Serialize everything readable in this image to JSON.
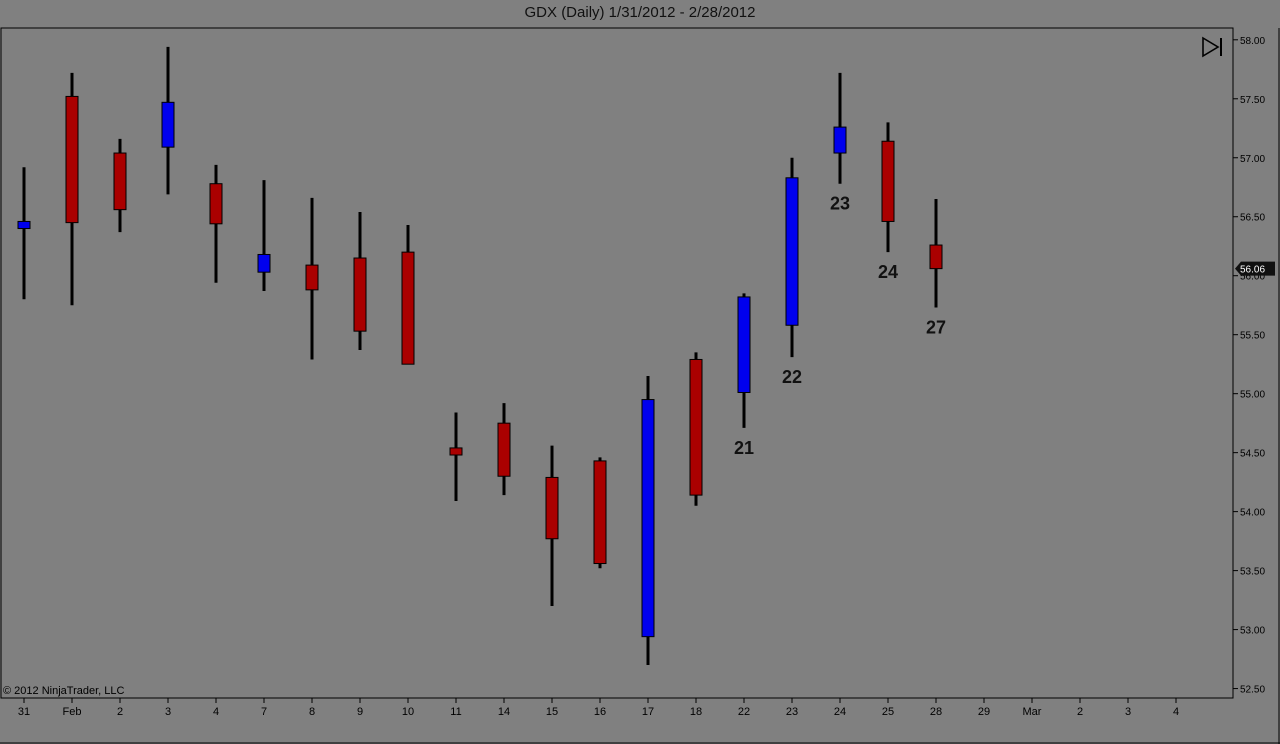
{
  "window": {
    "title": "GDX (Daily)  1/31/2012 - 2/28/2012",
    "copyright": "© 2012 NinjaTrader, LLC",
    "icons": [
      "skip-to-end-icon"
    ]
  },
  "colors": {
    "background": "#808080",
    "up_candle": "#0000ee",
    "down_candle": "#aa0000",
    "wick": "#000000",
    "price_marker": "#111111"
  },
  "chart_data": {
    "type": "candlestick",
    "title": "GDX (Daily)  1/31/2012 - 2/28/2012",
    "ylim": [
      52.42,
      58.1
    ],
    "y_ticks": [
      "58.00",
      "57.50",
      "57.00",
      "56.50",
      "56.00",
      "55.50",
      "55.00",
      "54.50",
      "54.00",
      "53.50",
      "53.00",
      "52.50"
    ],
    "x_ticks": [
      "31",
      "Feb",
      "2",
      "3",
      "4",
      "7",
      "8",
      "9",
      "10",
      "11",
      "14",
      "15",
      "16",
      "17",
      "18",
      "22",
      "23",
      "24",
      "25",
      "28",
      "29",
      "Mar",
      "2",
      "3",
      "4"
    ],
    "last_price": "56.06",
    "grid": false,
    "candles": [
      {
        "date": "31",
        "open": 56.4,
        "high": 56.92,
        "low": 55.8,
        "close": 56.46
      },
      {
        "date": "Feb",
        "open": 57.52,
        "high": 57.72,
        "low": 55.75,
        "close": 56.45
      },
      {
        "date": "2",
        "open": 57.04,
        "high": 57.16,
        "low": 56.37,
        "close": 56.56
      },
      {
        "date": "3",
        "open": 57.09,
        "high": 57.94,
        "low": 56.69,
        "close": 57.47
      },
      {
        "date": "4",
        "open": 56.78,
        "high": 56.94,
        "low": 55.94,
        "close": 56.44
      },
      {
        "date": "7",
        "open": 56.03,
        "high": 56.81,
        "low": 55.87,
        "close": 56.18
      },
      {
        "date": "8",
        "open": 56.09,
        "high": 56.66,
        "low": 55.29,
        "close": 55.88
      },
      {
        "date": "9",
        "open": 56.15,
        "high": 56.54,
        "low": 55.37,
        "close": 55.53
      },
      {
        "date": "10",
        "open": 56.2,
        "high": 56.43,
        "low": 55.25,
        "close": 55.25
      },
      {
        "date": "11",
        "open": 54.54,
        "high": 54.84,
        "low": 54.09,
        "close": 54.48
      },
      {
        "date": "14",
        "open": 54.75,
        "high": 54.92,
        "low": 54.14,
        "close": 54.3
      },
      {
        "date": "15",
        "open": 54.29,
        "high": 54.56,
        "low": 53.2,
        "close": 53.77
      },
      {
        "date": "16",
        "open": 54.43,
        "high": 54.46,
        "low": 53.52,
        "close": 53.56
      },
      {
        "date": "17",
        "open": 52.94,
        "high": 55.15,
        "low": 52.7,
        "close": 54.95
      },
      {
        "date": "18",
        "open": 55.29,
        "high": 55.35,
        "low": 54.05,
        "close": 54.14
      },
      {
        "date": "22",
        "open": 55.01,
        "high": 55.85,
        "low": 54.71,
        "close": 55.82,
        "label": "21"
      },
      {
        "date": "23",
        "open": 55.58,
        "high": 57.0,
        "low": 55.31,
        "close": 56.83,
        "label": "22"
      },
      {
        "date": "24",
        "open": 57.04,
        "high": 57.72,
        "low": 56.78,
        "close": 57.26,
        "label": "23"
      },
      {
        "date": "25",
        "open": 57.14,
        "high": 57.3,
        "low": 56.2,
        "close": 56.46,
        "label": "24"
      },
      {
        "date": "28",
        "open": 56.26,
        "high": 56.65,
        "low": 55.73,
        "close": 56.06,
        "label": "27"
      }
    ]
  }
}
